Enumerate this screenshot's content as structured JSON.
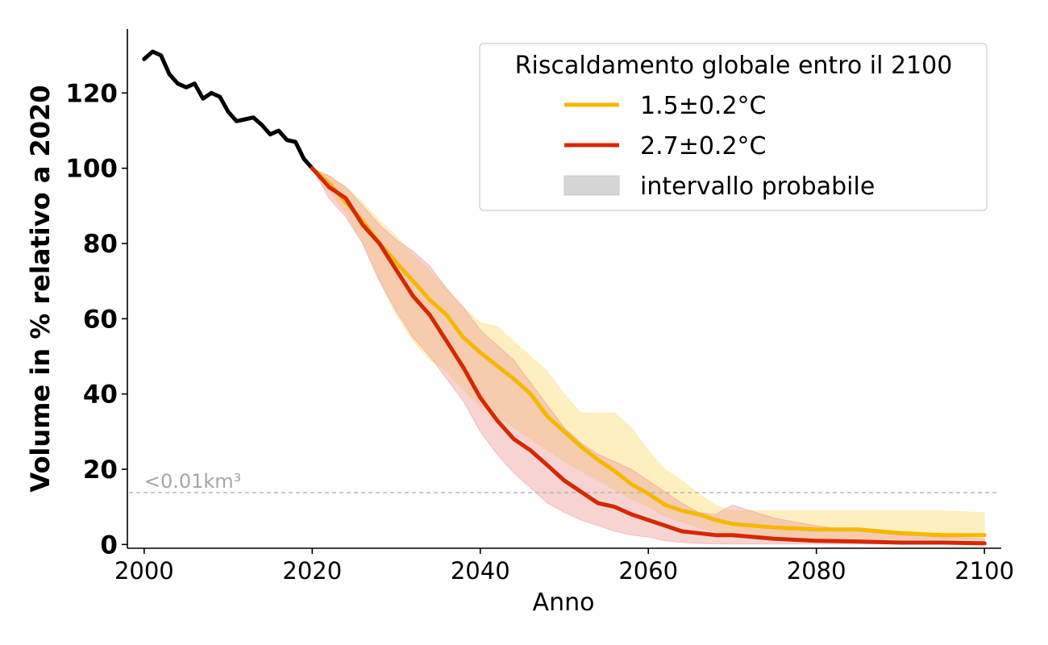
{
  "chart_data": {
    "type": "line",
    "title": "",
    "xlabel": "Anno",
    "ylabel": "Volume in % relativo a 2020",
    "xlim": [
      1998,
      2102
    ],
    "ylim": [
      -1,
      137
    ],
    "xticks": [
      2000,
      2020,
      2040,
      2060,
      2080,
      2100
    ],
    "yticks": [
      0,
      20,
      40,
      60,
      80,
      100,
      120
    ],
    "grid": false,
    "legend": {
      "title": "Riscaldamento globale entro il 2100",
      "placement": "top-right",
      "entries": [
        "1.5±0.2°C",
        "2.7±0.2°C",
        "intervallo probabile"
      ]
    },
    "threshold": {
      "label": "<0.01km³",
      "value": 13.8,
      "color": "#b3b3b3"
    },
    "colors": {
      "historical": "#000000",
      "low": "#f5b800",
      "high": "#d62800",
      "low_band": "#fde9ab",
      "high_band": "#ee9f9a",
      "legend_band": "#d6d6d6"
    },
    "historical": {
      "name": "",
      "x": [
        2000,
        2001,
        2002,
        2003,
        2004,
        2005,
        2006,
        2007,
        2008,
        2009,
        2010,
        2011,
        2012,
        2013,
        2014,
        2015,
        2016,
        2017,
        2018,
        2019,
        2020
      ],
      "y": [
        129,
        131,
        130,
        125,
        122.5,
        121.5,
        122.5,
        118.5,
        120,
        119,
        115,
        112.5,
        113,
        113.5,
        111.5,
        109,
        110,
        107.5,
        107,
        102.5,
        100
      ]
    },
    "series": [
      {
        "name": "1.5±0.2°C",
        "x": [
          2020,
          2022,
          2024,
          2026,
          2028,
          2030,
          2032,
          2034,
          2036,
          2038,
          2040,
          2042,
          2044,
          2046,
          2048,
          2050,
          2052,
          2054,
          2056,
          2058,
          2060,
          2062,
          2064,
          2066,
          2068,
          2070,
          2075,
          2080,
          2085,
          2090,
          2095,
          2100
        ],
        "y": [
          100,
          96,
          91,
          86,
          80,
          75,
          70,
          65,
          61,
          55,
          51,
          47.5,
          44,
          40,
          34,
          30,
          26,
          22.5,
          19.5,
          16,
          13.5,
          10.5,
          9,
          8,
          6.5,
          5.5,
          4.5,
          4,
          4,
          3,
          2.5,
          2.5
        ],
        "band_low": [
          100,
          94,
          88,
          80,
          70,
          61,
          54,
          49,
          46,
          41,
          37,
          34,
          31,
          28,
          25,
          22,
          19.5,
          17,
          14.5,
          12,
          10,
          7.5,
          6,
          4.5,
          3.5,
          2.5,
          2,
          1.5,
          1.5,
          1.5,
          1.5,
          1.5
        ],
        "band_high": [
          100,
          98,
          95,
          91,
          86,
          82,
          77,
          73,
          68,
          63,
          59,
          58,
          54,
          50,
          46,
          40,
          35,
          35,
          35,
          31,
          25,
          20,
          17,
          13.5,
          10.5,
          9,
          9,
          9,
          9,
          9,
          9,
          8.5
        ]
      },
      {
        "name": "2.7±0.2°C",
        "x": [
          2020,
          2022,
          2024,
          2026,
          2028,
          2030,
          2032,
          2034,
          2036,
          2038,
          2040,
          2042,
          2044,
          2046,
          2048,
          2050,
          2052,
          2054,
          2056,
          2058,
          2060,
          2062,
          2064,
          2066,
          2068,
          2070,
          2075,
          2080,
          2085,
          2090,
          2095,
          2100
        ],
        "y": [
          100,
          95,
          92,
          85,
          80,
          73,
          66,
          61,
          54,
          47,
          39,
          33,
          28,
          25,
          21,
          17,
          14,
          11,
          10,
          8,
          6.5,
          5,
          3.5,
          3,
          2.5,
          2.5,
          1.5,
          1,
          0.8,
          0.5,
          0.5,
          0.3
        ],
        "band_low": [
          100,
          92,
          87,
          80,
          70,
          62,
          55,
          50,
          44,
          38,
          30,
          24,
          19,
          15,
          11,
          8.5,
          6.5,
          5,
          3.5,
          2.5,
          2,
          1,
          0.5,
          0.3,
          0.2,
          0.1,
          0.1,
          0.1,
          0.1,
          0.1,
          0.1,
          0.1
        ],
        "band_high": [
          100,
          98,
          95,
          90,
          85,
          81,
          78,
          74,
          68,
          63,
          57,
          53,
          49,
          43,
          37,
          31,
          27,
          24,
          22,
          20,
          17,
          14,
          11,
          8.5,
          8,
          10.5,
          7,
          5,
          3.5,
          2.5,
          2,
          1.5
        ]
      }
    ]
  }
}
